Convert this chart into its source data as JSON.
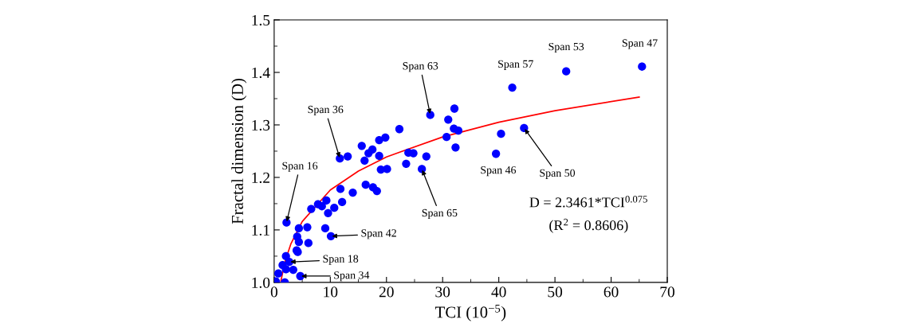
{
  "chart_data": {
    "type": "scatter",
    "xlabel": "TCI (10$^{−5}$)",
    "ylabel": "Fractal dimension (D)",
    "xlim": [
      0,
      70
    ],
    "ylim": [
      1.0,
      1.5
    ],
    "xticks": [
      0,
      10,
      20,
      30,
      40,
      50,
      60,
      70
    ],
    "yticks": [
      {
        "value": 1.0,
        "label": "1.0"
      },
      {
        "value": 1.1,
        "label": "1.1"
      },
      {
        "value": 1.2,
        "label": "1.2"
      },
      {
        "value": 1.3,
        "label": "1.3"
      },
      {
        "value": 1.4,
        "label": "1.4"
      },
      {
        "value": 1.5,
        "label": "1.5"
      }
    ],
    "grid": false,
    "legend": false,
    "marker": "circle",
    "series": [
      {
        "color": "#0000ff",
        "x": [
          0.3,
          0.75,
          1.9,
          1.5,
          2.1,
          3.4,
          4.65,
          2.7,
          2.1,
          4.0,
          4.2,
          4.4,
          6.1,
          4.1,
          4.4,
          5.9,
          2.2,
          6.6,
          7.8,
          8.5,
          9.3,
          9.6,
          10.7,
          12.1,
          11.8,
          14.0,
          16.3,
          17.6,
          18.3,
          9.1,
          10.1,
          11.7,
          13.1,
          15.6,
          16.1,
          16.8,
          17.5,
          18.7,
          19.8,
          18.7,
          19.0,
          20.1,
          22.3,
          23.5,
          23.9,
          24.8,
          27.1,
          26.3,
          27.8,
          31.0,
          32.1,
          32.0,
          32.8,
          30.7,
          32.3,
          42.4,
          52.0,
          65.5,
          40.4,
          44.5,
          39.5
        ],
        "values": [
          1.002,
          1.017,
          1.0,
          1.033,
          1.025,
          1.024,
          1.012,
          1.039,
          1.05,
          1.061,
          1.058,
          1.077,
          1.075,
          1.087,
          1.103,
          1.105,
          1.114,
          1.14,
          1.149,
          1.145,
          1.156,
          1.132,
          1.142,
          1.153,
          1.178,
          1.171,
          1.186,
          1.181,
          1.174,
          1.103,
          1.088,
          1.236,
          1.24,
          1.26,
          1.232,
          1.246,
          1.253,
          1.271,
          1.276,
          1.241,
          1.215,
          1.216,
          1.292,
          1.226,
          1.247,
          1.246,
          1.24,
          1.216,
          1.319,
          1.31,
          1.331,
          1.293,
          1.289,
          1.277,
          1.257,
          1.371,
          1.402,
          1.411,
          1.283,
          1.294,
          1.245
        ]
      },
      {
        "type": "line",
        "color": "#ff0000",
        "marker": "none",
        "line_style": "solid",
        "x": [
          1.2,
          2,
          3,
          5,
          10,
          15,
          20,
          30,
          40,
          50,
          65
        ],
        "values": [
          1.003,
          1.042,
          1.074,
          1.116,
          1.176,
          1.212,
          1.239,
          1.277,
          1.305,
          1.327,
          1.353
        ]
      }
    ],
    "annotations": [
      {
        "text": "Span 16",
        "x": 2.2,
        "y": 1.114
      },
      {
        "text": "Span 18",
        "x": 2.7,
        "y": 1.039
      },
      {
        "text": "Span 34",
        "x": 4.65,
        "y": 1.012
      },
      {
        "text": "Span 42",
        "x": 10.1,
        "y": 1.088
      },
      {
        "text": "Span 36",
        "x": 11.7,
        "y": 1.236
      },
      {
        "text": "Span 63",
        "x": 27.8,
        "y": 1.319
      },
      {
        "text": "Span 65",
        "x": 26.3,
        "y": 1.216
      },
      {
        "text": "Span 57",
        "x": 42.4,
        "y": 1.371
      },
      {
        "text": "Span 53",
        "x": 52.0,
        "y": 1.402
      },
      {
        "text": "Span 47",
        "x": 65.5,
        "y": 1.411
      },
      {
        "text": "Span 46",
        "x": 39.5,
        "y": 1.245
      },
      {
        "text": "Span 50",
        "x": 44.5,
        "y": 1.294
      },
      "D = 2.3461*TCI$^{0.075}$",
      "(R$^{2}$ = 0.8606)"
    ]
  }
}
